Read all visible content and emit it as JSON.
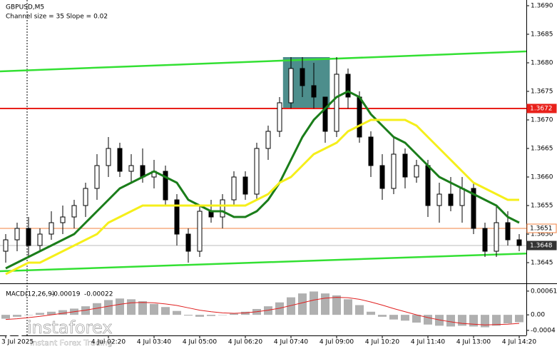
{
  "chart_data": {
    "type": "candlestick",
    "title": "GBPUSD,M5",
    "subtitle": "Channel size = 35 Slope = 0.02",
    "categories": [
      "3 Jul 2025",
      null,
      null,
      null,
      null,
      null,
      null,
      null,
      null,
      "4 Jul 02:20",
      null,
      null,
      null,
      "4 Jul 03:40",
      null,
      null,
      null,
      "4 Jul 05:00",
      null,
      null,
      null,
      "4 Jul 06:20",
      null,
      null,
      null,
      "4 Jul 07:40",
      null,
      null,
      null,
      "4 Jul 09:00",
      null,
      null,
      null,
      "4 Jul 10:20",
      null,
      null,
      null,
      "4 Jul 11:40",
      null,
      null,
      null,
      "4 Jul 13:00",
      null,
      null,
      null,
      "4 Jul 14:20"
    ],
    "ohlc": {
      "open": [
        1.3647,
        1.3649,
        1.3651,
        1.3648,
        1.365,
        1.3652,
        1.3653,
        1.3655,
        1.3658,
        1.3662,
        1.3665,
        1.3661,
        1.3662,
        1.366,
        1.3661,
        1.3656,
        1.365,
        1.3647,
        1.3654,
        1.3653,
        1.3656,
        1.366,
        1.3657,
        1.3665,
        1.3668,
        1.3673,
        1.3679,
        1.3676,
        1.3674,
        1.3668,
        1.3678,
        1.3674,
        1.3667,
        1.3662,
        1.3658,
        1.3664,
        1.366,
        1.3662,
        1.3655,
        1.3657,
        1.3655,
        1.3658,
        1.3651,
        1.3647,
        1.3652,
        1.3649
      ],
      "high": [
        1.365,
        1.3652,
        1.3653,
        1.3651,
        1.3654,
        1.3655,
        1.3656,
        1.3659,
        1.3664,
        1.3667,
        1.3666,
        1.3664,
        1.3665,
        1.3663,
        1.3662,
        1.3657,
        1.3651,
        1.3655,
        1.3656,
        1.3657,
        1.3661,
        1.3661,
        1.3666,
        1.3669,
        1.3674,
        1.3681,
        1.3681,
        1.368,
        1.3674,
        1.3681,
        1.3679,
        1.3675,
        1.3668,
        1.3664,
        1.3667,
        1.3665,
        1.3663,
        1.3663,
        1.3659,
        1.366,
        1.366,
        1.3659,
        1.3652,
        1.3655,
        1.3654,
        1.365
      ],
      "low": [
        1.3645,
        1.3647,
        1.3646,
        1.3647,
        1.3649,
        1.365,
        1.3651,
        1.3653,
        1.3656,
        1.366,
        1.366,
        1.3659,
        1.3659,
        1.3658,
        1.3655,
        1.3648,
        1.3645,
        1.3646,
        1.3652,
        1.3651,
        1.3655,
        1.3656,
        1.3656,
        1.3663,
        1.3667,
        1.3672,
        1.3674,
        1.3672,
        1.3666,
        1.3667,
        1.3672,
        1.3666,
        1.366,
        1.3656,
        1.3657,
        1.3658,
        1.3659,
        1.3653,
        1.3652,
        1.3654,
        1.3652,
        1.365,
        1.3646,
        1.3646,
        1.3648,
        1.3647
      ],
      "close": [
        1.3649,
        1.3651,
        1.3648,
        1.365,
        1.3652,
        1.3653,
        1.3655,
        1.3658,
        1.3662,
        1.3665,
        1.3661,
        1.3662,
        1.366,
        1.3661,
        1.3656,
        1.365,
        1.3647,
        1.3654,
        1.3653,
        1.3656,
        1.366,
        1.3657,
        1.3665,
        1.3668,
        1.3673,
        1.3679,
        1.3676,
        1.3674,
        1.3668,
        1.3678,
        1.3674,
        1.3667,
        1.3662,
        1.3658,
        1.3664,
        1.366,
        1.3662,
        1.3655,
        1.3657,
        1.3655,
        1.3658,
        1.3651,
        1.3647,
        1.3652,
        1.3649,
        1.3648
      ]
    },
    "candle_color": "#000000",
    "series": [
      {
        "color": "#1a7d1a",
        "values": [
          1.3644,
          1.3645,
          1.3646,
          1.3647,
          1.3648,
          1.3649,
          1.365,
          1.3652,
          1.3654,
          1.3656,
          1.3658,
          1.3659,
          1.366,
          1.3661,
          1.366,
          1.3659,
          1.3656,
          1.3655,
          1.3654,
          1.3654,
          1.3653,
          1.3653,
          1.3654,
          1.3656,
          1.3659,
          1.3663,
          1.3667,
          1.367,
          1.3672,
          1.3674,
          1.3675,
          1.3674,
          1.3671,
          1.3669,
          1.3667,
          1.3666,
          1.3664,
          1.3662,
          1.366,
          1.3659,
          1.3658,
          1.3657,
          1.3656,
          1.3655,
          1.3653,
          1.3652
        ]
      },
      {
        "color": "#f5ef1a",
        "values": [
          1.3643,
          1.3644,
          1.3645,
          1.3645,
          1.3646,
          1.3647,
          1.3648,
          1.3649,
          1.365,
          1.3652,
          1.3653,
          1.3654,
          1.3655,
          1.3655,
          1.3655,
          1.3655,
          1.3655,
          1.3655,
          1.3655,
          1.3655,
          1.3655,
          1.3655,
          1.3656,
          1.3657,
          1.3659,
          1.366,
          1.3662,
          1.3664,
          1.3665,
          1.3666,
          1.3668,
          1.3669,
          1.367,
          1.367,
          1.367,
          1.367,
          1.3669,
          1.3667,
          1.3665,
          1.3663,
          1.3661,
          1.3659,
          1.3658,
          1.3657,
          1.3656,
          1.3656
        ]
      }
    ],
    "channel": {
      "color": "#33e033",
      "upper": [
        1.36785,
        1.3682
      ],
      "lower": [
        1.36435,
        1.36466
      ]
    },
    "highlight": {
      "color": "#2e7a78",
      "x": [
        24.3,
        28.4
      ],
      "y": [
        1.3672,
        1.3681
      ]
    },
    "levels": [
      {
        "value": 1.3672,
        "color": "#e8201a"
      },
      {
        "value": 1.3651,
        "color": "#f08040"
      },
      {
        "value": 1.3648,
        "color": "#333333"
      }
    ],
    "ylim": [
      1.3641,
      1.3691
    ],
    "yticks": [
      {
        "value": 1.369,
        "label": "1.3690"
      },
      1.3685,
      {
        "value": 1.368,
        "label": "1.3680"
      },
      1.3675,
      {
        "value": 1.367,
        "label": "1.3670"
      },
      1.3665,
      {
        "value": 1.366,
        "label": "1.3660"
      },
      1.3655,
      {
        "value": 1.365,
        "label": "1.3650"
      },
      1.3645
    ],
    "macd": {
      "label": "MACD(12,26,9)",
      "value": -0.00019,
      "signal_value": -0.00022,
      "histogram_color": "#b0b0b0",
      "signal_color": "#e02020",
      "histogram": [
        -0.0001,
        -5e-05,
        0,
        5e-05,
        8e-05,
        0.00012,
        0.00016,
        0.00022,
        0.0003,
        0.00038,
        0.00042,
        0.0004,
        0.00035,
        0.00028,
        0.0002,
        0.0001,
        -2e-05,
        -5e-05,
        -3e-05,
        0,
        3e-05,
        8e-05,
        0.00015,
        0.00022,
        0.00032,
        0.00045,
        0.00055,
        0.0006,
        0.00055,
        0.0005,
        0.0004,
        0.00025,
        8e-05,
        -5e-05,
        -0.00012,
        -0.00015,
        -0.0002,
        -0.00025,
        -0.00028,
        -0.0003,
        -0.00028,
        -0.0003,
        -0.00032,
        -0.00028,
        -0.00022,
        -0.00019
      ],
      "signal": [
        -0.00012,
        -0.0001,
        -7e-05,
        -4e-05,
        0,
        4e-05,
        8e-05,
        0.00012,
        0.00017,
        0.00022,
        0.00027,
        0.00031,
        0.00032,
        0.00031,
        0.00028,
        0.00024,
        0.00018,
        0.00012,
        8e-05,
        5e-05,
        4e-05,
        5e-05,
        8e-05,
        0.00012,
        0.00017,
        0.00024,
        0.00031,
        0.00038,
        0.00043,
        0.00045,
        0.00044,
        0.0004,
        0.00033,
        0.00025,
        0.00016,
        8e-05,
        0,
        -7e-05,
        -0.00013,
        -0.00018,
        -0.00022,
        -0.00024,
        -0.00026,
        -0.00025,
        -0.00024,
        -0.00022
      ],
      "y2lim": [
        -0.00053,
        0.00081
      ],
      "y2ticks": [
        0.00061,
        {
          "value": 0,
          "label": "0.00"
        },
        -0.0004
      ]
    },
    "logo": {
      "name": "instaforex",
      "tagline": "Instant Forex Trading"
    }
  }
}
